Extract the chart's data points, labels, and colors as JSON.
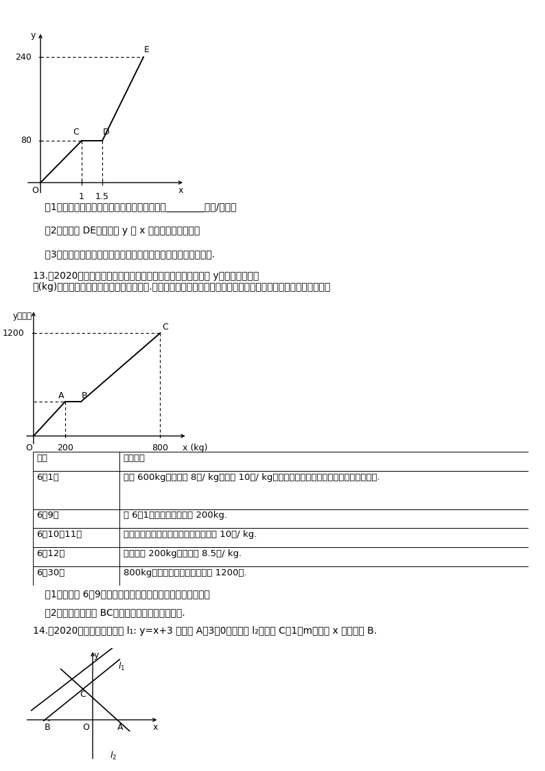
{
  "page_bg": "#ffffff",
  "fig_width": 7.94,
  "fig_height": 11.23,
  "graph1": {
    "xlim": [
      -0.4,
      3.6
    ],
    "ylim": [
      -25,
      290
    ],
    "segments": [
      [
        [
          0,
          0
        ],
        [
          1,
          80
        ]
      ],
      [
        [
          1,
          80
        ],
        [
          1.5,
          80
        ]
      ],
      [
        [
          1.5,
          80
        ],
        [
          2.5,
          240
        ]
      ]
    ],
    "dashed_lines": [
      [
        [
          0,
          80
        ],
        [
          1,
          80
        ]
      ],
      [
        [
          1,
          80
        ],
        [
          1,
          0
        ]
      ],
      [
        [
          0,
          240
        ],
        [
          2.5,
          240
        ]
      ],
      [
        [
          1.5,
          80
        ],
        [
          1.5,
          0
        ]
      ]
    ]
  },
  "graph2": {
    "xlim": [
      -60,
      980
    ],
    "ylim": [
      -120,
      1480
    ],
    "segments": [
      [
        [
          0,
          0
        ],
        [
          200,
          400
        ]
      ],
      [
        [
          200,
          400
        ],
        [
          300,
          400
        ]
      ],
      [
        [
          300,
          400
        ],
        [
          800,
          1200
        ]
      ]
    ],
    "dashed_lines": [
      [
        [
          0,
          1200
        ],
        [
          800,
          1200
        ]
      ],
      [
        [
          800,
          1200
        ],
        [
          800,
          0
        ]
      ],
      [
        [
          0,
          400
        ],
        [
          200,
          400
        ]
      ],
      [
        [
          200,
          400
        ],
        [
          200,
          0
        ]
      ]
    ]
  },
  "table_rows": [
    [
      "日期",
      "销售记录"
    ],
    [
      "6月1日",
      "库存 600kg，成本价 8元/ kg，售价 10元/ kg（除了促销降价，其他时间售价保持不变）."
    ],
    [
      "6月9日",
      "从 6月1日至今，一共售出 200kg."
    ],
    [
      "6月10、11日",
      "这两天以成本价促销，之后售价恢复到 10元/ kg."
    ],
    [
      "6月12日",
      "补充进货 200kg，成本价 8.5元/ kg."
    ],
    [
      "6月30日",
      "800kg水果全部售完，一共获利 1200元."
    ]
  ],
  "graph3": {
    "xlim": [
      -2.8,
      2.8
    ],
    "ylim": [
      -2.2,
      3.8
    ]
  },
  "texts": {
    "problem12_questions": [
      "    （1）根据图象可知，休息前汽车行騶的速度为________千米/小时；",
      "    （2）求线段 DE所表示的 y 与 x 之间的函数表达式；",
      "    （3）接到通知后，汽车仍按原速行騶能否准时到达？请说明理由."
    ],
    "problem13_intro": "13.（2020苏州）某商店代理销售一种水果，六月份的销售利润 y（元）与销售量 Ｘ(kg)之间函数关系的图像如图中折线所示.请你根据图像及这种水果的相关销售记录提供的信息，解答下列问题：",
    "problem13_questions": [
      "    （1）截止到 6月9日，该商店销售这种水果一共获利多少元？",
      "    （2）求图像中线段 BC所在直线对应的函数表达式."
    ],
    "problem14_intro": "14.（2020南通）如图，直线 l₁: y=x+3 与过点 A（3，0）的直线 l₂交于点 C（1，m），与 x 轴交于点 B."
  }
}
